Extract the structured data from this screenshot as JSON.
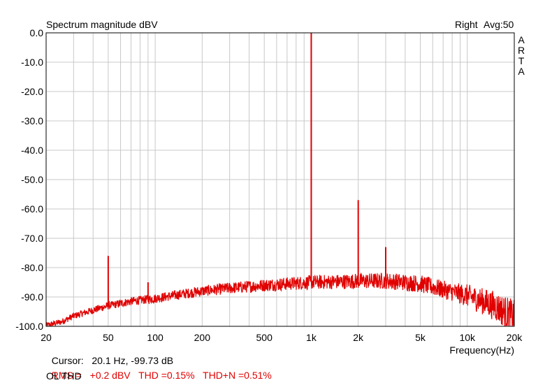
{
  "chart_data": {
    "type": "line",
    "title": "Spectrum magnitude dBV",
    "channel": "Right",
    "averaging": "Avg:50",
    "brand": [
      "A",
      "R",
      "T",
      "A"
    ],
    "xlabel": "Frequency(Hz)",
    "ylabel": "",
    "x_scale": "log",
    "xlim": [
      20,
      20000
    ],
    "ylim": [
      -100,
      0
    ],
    "x_ticks": [
      {
        "value": 20,
        "label": "20"
      },
      {
        "value": 50,
        "label": "50"
      },
      {
        "value": 100,
        "label": "100"
      },
      {
        "value": 200,
        "label": "200"
      },
      {
        "value": 500,
        "label": "500"
      },
      {
        "value": 1000,
        "label": "1k"
      },
      {
        "value": 2000,
        "label": "2k"
      },
      {
        "value": 5000,
        "label": "5k"
      },
      {
        "value": 10000,
        "label": "10k"
      },
      {
        "value": 20000,
        "label": "20k"
      }
    ],
    "y_ticks": [
      {
        "value": 0,
        "label": "0.0"
      },
      {
        "value": -10,
        "label": "-10.0"
      },
      {
        "value": -20,
        "label": "-20.0"
      },
      {
        "value": -30,
        "label": "-30.0"
      },
      {
        "value": -40,
        "label": "-40.0"
      },
      {
        "value": -50,
        "label": "-50.0"
      },
      {
        "value": -60,
        "label": "-60.0"
      },
      {
        "value": -70,
        "label": "-70.0"
      },
      {
        "value": -80,
        "label": "-80.0"
      },
      {
        "value": -90,
        "label": "-90.0"
      },
      {
        "value": -100,
        "label": "-100.0"
      }
    ],
    "grid": true,
    "series": [
      {
        "color": "#e00000",
        "noise_floor": {
          "x": [
            20,
            25,
            30,
            40,
            50,
            70,
            100,
            150,
            200,
            300,
            500,
            700,
            1000,
            1500,
            2000,
            3000,
            4000,
            5000,
            7000,
            10000,
            15000,
            20000
          ],
          "y": [
            -99.7,
            -98.5,
            -96.5,
            -94.5,
            -93,
            -91.5,
            -90.5,
            -89,
            -88,
            -87,
            -86,
            -85.5,
            -85,
            -84.8,
            -84.6,
            -84.5,
            -85,
            -85.5,
            -87.5,
            -89.5,
            -93,
            -97
          ]
        },
        "peaks": [
          {
            "x": 50,
            "y": -76
          },
          {
            "x": 90,
            "y": -85
          },
          {
            "x": 1000,
            "y": 0
          },
          {
            "x": 2000,
            "y": -57
          },
          {
            "x": 3000,
            "y": -73
          }
        ]
      }
    ]
  },
  "readout": {
    "cursor_label": "Cursor:",
    "cursor_value": "20.1 Hz, -99.73 dB",
    "rms_label": "RMS =",
    "rms_value": "+0.2 dBV",
    "thd_text": "THD =0.15%",
    "thdn_text": "THD+N =0.51%",
    "note": "OL THD"
  }
}
